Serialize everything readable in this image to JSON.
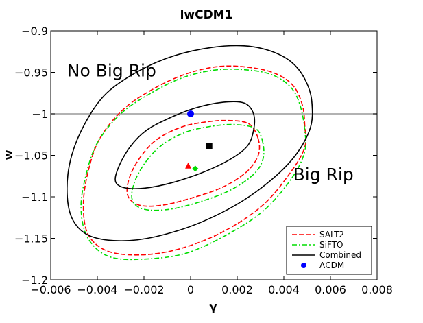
{
  "chart_data": {
    "type": "contour",
    "title": "lwCDM1",
    "xlabel": "γ",
    "ylabel": "w",
    "xlim": [
      -0.006,
      0.008
    ],
    "ylim": [
      -1.2,
      -0.9
    ],
    "xticks": [
      -0.006,
      -0.004,
      -0.002,
      0,
      0.002,
      0.004,
      0.006,
      0.008
    ],
    "xtick_labels": [
      "−0.006",
      "−0.004",
      "−0.002",
      "0",
      "0.002",
      "0.004",
      "0.006",
      "0.008"
    ],
    "yticks": [
      -0.9,
      -0.95,
      -1,
      -1.05,
      -1.1,
      -1.15,
      -1.2
    ],
    "ytick_labels": [
      "−0.9",
      "−0.95",
      "−1",
      "−1.05",
      "−1.1",
      "−1.15",
      "−1.2"
    ],
    "reference_line": {
      "y": -1,
      "color": "#999999"
    },
    "annotations": [
      {
        "text": "No Big Rip",
        "x": -0.0053,
        "y": -0.955
      },
      {
        "text": "Big Rip",
        "x": 0.0044,
        "y": -1.08
      }
    ],
    "legend": {
      "placement": "bottom-right"
    },
    "series": [
      {
        "name": "SALT2",
        "color": "#ff0000",
        "dash": "dashed",
        "contours": [
          [
            [
              0.0049,
              -1.015
            ],
            [
              0.0048,
              -0.99
            ],
            [
              0.0044,
              -0.966
            ],
            [
              0.0036,
              -0.951
            ],
            [
              0.0025,
              -0.944
            ],
            [
              0.0012,
              -0.943
            ],
            [
              -0.0002,
              -0.952
            ],
            [
              -0.0016,
              -0.97
            ],
            [
              -0.0029,
              -0.995
            ],
            [
              -0.0039,
              -1.03
            ],
            [
              -0.0044,
              -1.07
            ],
            [
              -0.0046,
              -1.11
            ],
            [
              -0.0044,
              -1.145
            ],
            [
              -0.0036,
              -1.165
            ],
            [
              -0.0022,
              -1.17
            ],
            [
              -0.0005,
              -1.163
            ],
            [
              0.0014,
              -1.142
            ],
            [
              0.0031,
              -1.11
            ],
            [
              0.0043,
              -1.07
            ],
            [
              0.0049,
              -1.04
            ],
            [
              0.0049,
              -1.015
            ]
          ],
          [
            [
              0.0029,
              -1.03
            ],
            [
              0.0025,
              -1.012
            ],
            [
              0.0016,
              -1.008
            ],
            [
              0.0006,
              -1.01
            ],
            [
              -0.0004,
              -1.016
            ],
            [
              -0.0014,
              -1.03
            ],
            [
              -0.0021,
              -1.05
            ],
            [
              -0.0026,
              -1.075
            ],
            [
              -0.0027,
              -1.098
            ],
            [
              -0.0022,
              -1.11
            ],
            [
              -0.0012,
              -1.11
            ],
            [
              0.0001,
              -1.101
            ],
            [
              0.0014,
              -1.088
            ],
            [
              0.0024,
              -1.07
            ],
            [
              0.0029,
              -1.05
            ],
            [
              0.0029,
              -1.03
            ]
          ]
        ]
      },
      {
        "name": "SiFTO",
        "color": "#00dd00",
        "dash": "dashdot",
        "contours": [
          [
            [
              0.0049,
              -1.02
            ],
            [
              0.0047,
              -0.99
            ],
            [
              0.0043,
              -0.968
            ],
            [
              0.0035,
              -0.953
            ],
            [
              0.0024,
              -0.947
            ],
            [
              0.0011,
              -0.947
            ],
            [
              -0.0003,
              -0.956
            ],
            [
              -0.0017,
              -0.975
            ],
            [
              -0.003,
              -1.0
            ],
            [
              -0.004,
              -1.035
            ],
            [
              -0.0045,
              -1.075
            ],
            [
              -0.0047,
              -1.115
            ],
            [
              -0.0044,
              -1.15
            ],
            [
              -0.0035,
              -1.172
            ],
            [
              -0.002,
              -1.175
            ],
            [
              -0.0002,
              -1.168
            ],
            [
              0.0016,
              -1.145
            ],
            [
              0.0032,
              -1.115
            ],
            [
              0.0044,
              -1.075
            ],
            [
              0.0049,
              -1.045
            ],
            [
              0.0049,
              -1.02
            ]
          ],
          [
            [
              0.0031,
              -1.035
            ],
            [
              0.0028,
              -1.018
            ],
            [
              0.0019,
              -1.013
            ],
            [
              0.0009,
              -1.015
            ],
            [
              -0.0002,
              -1.022
            ],
            [
              -0.0012,
              -1.037
            ],
            [
              -0.0019,
              -1.057
            ],
            [
              -0.0024,
              -1.082
            ],
            [
              -0.0025,
              -1.104
            ],
            [
              -0.002,
              -1.115
            ],
            [
              -0.0009,
              -1.115
            ],
            [
              0.0004,
              -1.106
            ],
            [
              0.0017,
              -1.092
            ],
            [
              0.0027,
              -1.073
            ],
            [
              0.0031,
              -1.055
            ],
            [
              0.0031,
              -1.035
            ]
          ]
        ]
      },
      {
        "name": "Combined",
        "color": "#000000",
        "dash": "solid",
        "contours": [
          [
            [
              0.0052,
              -0.985
            ],
            [
              0.0049,
              -0.958
            ],
            [
              0.0043,
              -0.937
            ],
            [
              0.0034,
              -0.924
            ],
            [
              0.0023,
              -0.918
            ],
            [
              0.0009,
              -0.92
            ],
            [
              -0.0007,
              -0.93
            ],
            [
              -0.0022,
              -0.948
            ],
            [
              -0.0036,
              -0.975
            ],
            [
              -0.0045,
              -1.01
            ],
            [
              -0.0051,
              -1.05
            ],
            [
              -0.0053,
              -1.09
            ],
            [
              -0.0051,
              -1.125
            ],
            [
              -0.0044,
              -1.146
            ],
            [
              -0.0031,
              -1.153
            ],
            [
              -0.0015,
              -1.148
            ],
            [
              0.0005,
              -1.13
            ],
            [
              0.0025,
              -1.1
            ],
            [
              0.0042,
              -1.06
            ],
            [
              0.0051,
              -1.02
            ],
            [
              0.0052,
              -0.985
            ]
          ],
          [
            [
              0.0027,
              -1.0
            ],
            [
              0.0023,
              -0.987
            ],
            [
              0.0014,
              -0.986
            ],
            [
              0.0002,
              -0.993
            ],
            [
              -0.0009,
              -1.005
            ],
            [
              -0.0019,
              -1.02
            ],
            [
              -0.0026,
              -1.04
            ],
            [
              -0.0031,
              -1.065
            ],
            [
              -0.0032,
              -1.083
            ],
            [
              -0.0026,
              -1.09
            ],
            [
              -0.0014,
              -1.087
            ],
            [
              0.0001,
              -1.075
            ],
            [
              0.0015,
              -1.058
            ],
            [
              0.0024,
              -1.04
            ],
            [
              0.0027,
              -1.02
            ],
            [
              0.0027,
              -1.0
            ]
          ]
        ]
      }
    ],
    "points": [
      {
        "series": "SALT2",
        "shape": "triangle",
        "color": "#ff0000",
        "x": -0.0001,
        "y": -1.063
      },
      {
        "series": "SiFTO",
        "shape": "diamond",
        "color": "#00dd00",
        "x": 0.0002,
        "y": -1.066
      },
      {
        "series": "Combined",
        "shape": "square",
        "color": "#000000",
        "x": 0.0008,
        "y": -1.039
      },
      {
        "series": "ΛCDM",
        "shape": "circle",
        "color": "#0000ff",
        "x": 0,
        "y": -1
      }
    ],
    "legend_entries": [
      {
        "label": "SALT2",
        "color": "#ff0000",
        "kind": "dashed"
      },
      {
        "label": "SiFTO",
        "color": "#00dd00",
        "kind": "dashdot"
      },
      {
        "label": "Combined",
        "color": "#000000",
        "kind": "solid"
      },
      {
        "label": "ΛCDM",
        "color": "#0000ff",
        "kind": "circle"
      }
    ]
  }
}
